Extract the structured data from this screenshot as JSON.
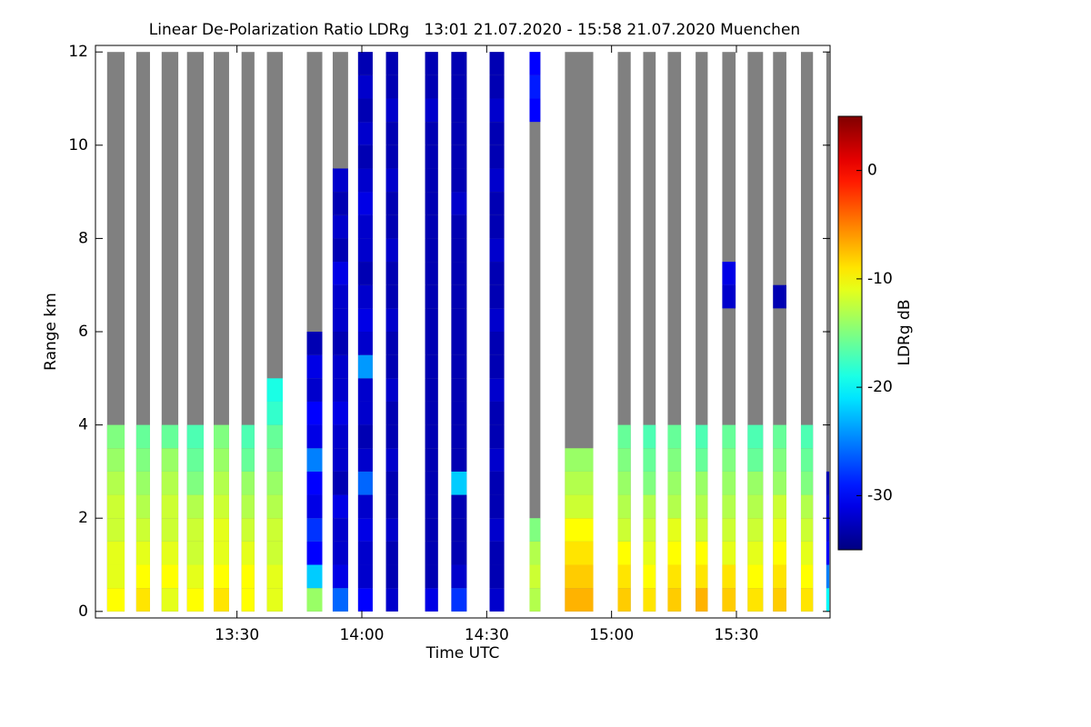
{
  "chart_data": {
    "type": "profile-heatmap",
    "title": "Linear De-Polarization Ratio LDRg   13:01 21.07.2020 - 15:58 21.07.2020 Muenchen",
    "x_label": "Time UTC",
    "y_label": "Range km",
    "colorbar_label": "LDRg dB",
    "xlim": [
      776,
      952.5
    ],
    "xticks": [
      {
        "value": 810,
        "label": "13:30"
      },
      {
        "value": 840,
        "label": "14:00"
      },
      {
        "value": 870,
        "label": "14:30"
      },
      {
        "value": 900,
        "label": "15:00"
      },
      {
        "value": 930,
        "label": "15:30"
      }
    ],
    "ylim": [
      -0.14,
      12.14
    ],
    "yticks": [
      0,
      2,
      4,
      6,
      8,
      10,
      12
    ],
    "clim": [
      -35,
      5
    ],
    "cticks": [
      0,
      -10,
      -20,
      -30
    ],
    "colormap": "jet",
    "nodata_color": "#808080",
    "heights": [
      0,
      0.5,
      1,
      1.5,
      2,
      2.5,
      3,
      3.5,
      4,
      4.5,
      5,
      5.5,
      6,
      6.5,
      7,
      7.5,
      8,
      8.5,
      9,
      9.5,
      10,
      10.5,
      11,
      11.5,
      12
    ],
    "profiles": [
      {
        "start": 778.8,
        "end": 783.0,
        "values": [
          -10,
          -11,
          -11,
          -12,
          -12,
          -13,
          -14,
          -15,
          null,
          null,
          null,
          null,
          null,
          null,
          null,
          null,
          null,
          null,
          null,
          null,
          null,
          null,
          null,
          null
        ]
      },
      {
        "start": 785.8,
        "end": 789.1,
        "values": [
          -9,
          -10,
          -11,
          -12,
          -13,
          -14,
          -15,
          -16,
          null,
          null,
          null,
          null,
          null,
          null,
          null,
          null,
          null,
          null,
          null,
          null,
          null,
          null,
          null,
          null
        ]
      },
      {
        "start": 791.9,
        "end": 795.9,
        "values": [
          -11,
          -10,
          -11,
          -12,
          -12,
          -13,
          -14,
          -16,
          null,
          null,
          null,
          null,
          null,
          null,
          null,
          null,
          null,
          null,
          null,
          null,
          null,
          null,
          null,
          null
        ]
      },
      {
        "start": 798.0,
        "end": 802.0,
        "values": [
          -10,
          -11,
          -12,
          -12,
          -13,
          -15,
          -16,
          -17,
          null,
          null,
          null,
          null,
          null,
          null,
          null,
          null,
          null,
          null,
          null,
          null,
          null,
          null,
          null,
          null
        ]
      },
      {
        "start": 804.4,
        "end": 808.1,
        "values": [
          -9,
          -10,
          -11,
          -11,
          -12,
          -13,
          -14,
          -15,
          null,
          null,
          null,
          null,
          null,
          null,
          null,
          null,
          null,
          null,
          null,
          null,
          null,
          null,
          null,
          null
        ]
      },
      {
        "start": 811.1,
        "end": 814.2,
        "values": [
          -10,
          -10,
          -11,
          -12,
          -13,
          -14,
          -16,
          -17,
          null,
          null,
          null,
          null,
          null,
          null,
          null,
          null,
          null,
          null,
          null,
          null,
          null,
          null,
          null,
          null
        ]
      },
      {
        "start": 817.2,
        "end": 821.0,
        "values": [
          -11,
          -11,
          -12,
          -12,
          -13,
          -14,
          -15,
          -16,
          -18,
          -19,
          null,
          null,
          null,
          null,
          null,
          null,
          null,
          null,
          null,
          null,
          null,
          null,
          null,
          null
        ]
      },
      {
        "start": 826.8,
        "end": 830.5,
        "values": [
          -14,
          -22,
          -30,
          -28,
          -31,
          -30,
          -25,
          -31,
          -30,
          -32,
          -31,
          -33,
          null,
          null,
          null,
          null,
          null,
          null,
          null,
          null,
          null,
          null,
          null,
          null
        ]
      },
      {
        "start": 833.0,
        "end": 836.7,
        "values": [
          -26,
          -31,
          -32,
          -32,
          -31,
          -33,
          -32,
          -32,
          -31,
          -32,
          -32,
          -33,
          -32,
          -32,
          -31,
          -33,
          -32,
          -33,
          -32,
          null,
          null,
          null,
          null,
          null
        ]
      },
      {
        "start": 839.1,
        "end": 842.6,
        "values": [
          -30,
          -32,
          -32,
          -31,
          -32,
          -26,
          -32,
          -33,
          -32,
          -32,
          -24,
          -32,
          -31,
          -32,
          -33,
          -32,
          -32,
          -31,
          -32,
          -33,
          -32,
          -33,
          -32,
          -33
        ]
      },
      {
        "start": 845.8,
        "end": 848.7,
        "values": [
          -32,
          -33,
          -33,
          -32,
          -33,
          -33,
          -32,
          -33,
          -33,
          -32,
          -33,
          -33,
          -32,
          -33,
          -33,
          -32,
          -33,
          -33,
          -32,
          -33,
          -33,
          -32,
          -33,
          -33
        ]
      },
      {
        "start": 855.2,
        "end": 858.3,
        "values": [
          -31,
          -33,
          -33,
          -33,
          -33,
          -33,
          -33,
          -33,
          -33,
          -33,
          -33,
          -33,
          -33,
          -33,
          -33,
          -33,
          -33,
          -33,
          -33,
          -33,
          -33,
          -32,
          -33,
          -33
        ]
      },
      {
        "start": 861.5,
        "end": 865.2,
        "values": [
          -28,
          -32,
          -33,
          -33,
          -33,
          -22,
          -33,
          -33,
          -33,
          -33,
          -33,
          -33,
          -33,
          -33,
          -33,
          -33,
          -33,
          -32,
          -33,
          -33,
          -33,
          -33,
          -33,
          -33
        ]
      },
      {
        "start": 870.7,
        "end": 874.2,
        "values": [
          -32,
          -33,
          -33,
          -32,
          -33,
          -33,
          -32,
          -33,
          -33,
          -32,
          -33,
          -33,
          -32,
          -33,
          -33,
          -32,
          -33,
          -33,
          -32,
          -33,
          -33,
          -32,
          -33,
          -33
        ]
      },
      {
        "start": 880.3,
        "end": 882.9,
        "values": [
          -13,
          -12,
          -13,
          -15,
          null,
          null,
          null,
          null,
          null,
          null,
          null,
          null,
          null,
          null,
          null,
          null,
          null,
          null,
          null,
          null,
          null,
          -30,
          -29,
          -30
        ]
      },
      {
        "start": 888.8,
        "end": 895.6,
        "values": [
          -7,
          -8,
          -9,
          -10,
          -12,
          -13,
          -14,
          null,
          null,
          null,
          null,
          null,
          null,
          null,
          null,
          null,
          null,
          null,
          null,
          null,
          null,
          null,
          null,
          null
        ]
      },
      {
        "start": 901.5,
        "end": 904.6,
        "values": [
          -8,
          -9,
          -10,
          -12,
          -13,
          -14,
          -15,
          -16,
          null,
          null,
          null,
          null,
          null,
          null,
          null,
          null,
          null,
          null,
          null,
          null,
          null,
          null,
          null,
          null
        ]
      },
      {
        "start": 907.6,
        "end": 910.6,
        "values": [
          -9,
          -10,
          -11,
          -12,
          -13,
          -15,
          -16,
          -17,
          null,
          null,
          null,
          null,
          null,
          null,
          null,
          null,
          null,
          null,
          null,
          null,
          null,
          null,
          null,
          null
        ]
      },
      {
        "start": 913.5,
        "end": 916.7,
        "values": [
          -8,
          -9,
          -10,
          -11,
          -13,
          -14,
          -15,
          -16,
          null,
          null,
          null,
          null,
          null,
          null,
          null,
          null,
          null,
          null,
          null,
          null,
          null,
          null,
          null,
          null
        ]
      },
      {
        "start": 920.2,
        "end": 923.1,
        "values": [
          -7,
          -9,
          -10,
          -12,
          -13,
          -14,
          -16,
          -17,
          null,
          null,
          null,
          null,
          null,
          null,
          null,
          null,
          null,
          null,
          null,
          null,
          null,
          null,
          null,
          null
        ]
      },
      {
        "start": 926.6,
        "end": 929.8,
        "values": [
          -8,
          -9,
          -11,
          -12,
          -13,
          -14,
          -15,
          -16,
          null,
          null,
          null,
          null,
          null,
          -32,
          -31,
          null,
          null,
          null,
          null,
          null,
          null,
          null,
          null,
          null
        ]
      },
      {
        "start": 932.7,
        "end": 936.4,
        "values": [
          -9,
          -10,
          -11,
          -12,
          -13,
          -14,
          -16,
          -17,
          null,
          null,
          null,
          null,
          null,
          null,
          null,
          null,
          null,
          null,
          null,
          null,
          null,
          null,
          null,
          null
        ]
      },
      {
        "start": 938.8,
        "end": 942.0,
        "values": [
          -8,
          -9,
          -10,
          -11,
          -12,
          -14,
          -15,
          -16,
          null,
          null,
          null,
          null,
          null,
          -33,
          null,
          null,
          null,
          null,
          null,
          null,
          null,
          null,
          null,
          null
        ]
      },
      {
        "start": 945.5,
        "end": 948.4,
        "values": [
          -9,
          -10,
          -11,
          -12,
          -13,
          -15,
          -16,
          -17,
          null,
          null,
          null,
          null,
          null,
          null,
          null,
          null,
          null,
          null,
          null,
          null,
          null,
          null,
          null,
          null
        ]
      },
      {
        "start": 951.6,
        "end": 952.3,
        "values": [
          -20,
          -25,
          -30,
          -31,
          -32,
          -33,
          null,
          null,
          null,
          null,
          null,
          null,
          null,
          null,
          null,
          null,
          null,
          null,
          null,
          null,
          null,
          null,
          null,
          null
        ]
      }
    ]
  }
}
